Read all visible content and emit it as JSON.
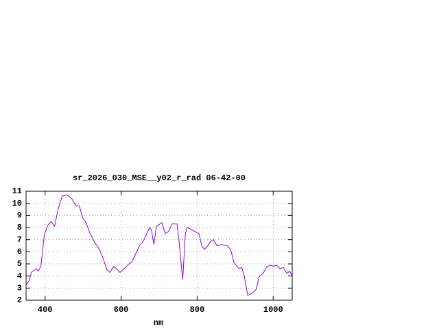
{
  "chart_data": {
    "type": "line",
    "title": "sr_2026_030_MSE__y02_r_rad 06-42-00",
    "x_label": "nm",
    "x": [
      350,
      358,
      364,
      377,
      382,
      389,
      398,
      407,
      416,
      425,
      434,
      445,
      458,
      470,
      481,
      490,
      499,
      508,
      517,
      530,
      543,
      552,
      563,
      570,
      581,
      588,
      597,
      608,
      621,
      629,
      638,
      648,
      657,
      666,
      675,
      680,
      686,
      693,
      707,
      716,
      725,
      734,
      747,
      752,
      758,
      762,
      769,
      774,
      787,
      798,
      805,
      812,
      819,
      828,
      837,
      843,
      852,
      864,
      879,
      888,
      897,
      910,
      917,
      924,
      933,
      946,
      955,
      964,
      973,
      982,
      991,
      1000,
      1009,
      1018,
      1027,
      1036,
      1043,
      1050
    ],
    "values": [
      3.3,
      3.6,
      4.3,
      4.6,
      4.4,
      4.8,
      7.4,
      8.2,
      8.5,
      8.1,
      9.5,
      10.6,
      10.7,
      10.4,
      9.8,
      9.8,
      8.8,
      8.4,
      7.6,
      6.8,
      6.2,
      5.5,
      4.5,
      4.3,
      4.8,
      4.6,
      4.3,
      4.6,
      5.0,
      5.2,
      5.8,
      6.5,
      6.8,
      7.4,
      8.0,
      7.8,
      6.6,
      8.1,
      8.4,
      7.5,
      7.7,
      8.3,
      8.3,
      7.0,
      5.0,
      3.7,
      7.5,
      8.0,
      7.8,
      7.6,
      7.5,
      6.5,
      6.2,
      6.5,
      6.9,
      7.0,
      6.5,
      6.6,
      6.5,
      6.2,
      5.1,
      4.6,
      4.7,
      4.0,
      2.4,
      2.6,
      2.9,
      4.0,
      4.2,
      4.7,
      4.9,
      4.8,
      4.9,
      4.6,
      4.7,
      4.2,
      4.4,
      4.0
    ],
    "color": "#9400d3",
    "xlim": [
      350,
      1050
    ],
    "xticks": [
      400,
      600,
      800,
      1000
    ],
    "ylim": [
      2,
      11
    ],
    "yticks": [
      2,
      3,
      4,
      5,
      6,
      7,
      8,
      9,
      10,
      11
    ],
    "grid": true
  }
}
